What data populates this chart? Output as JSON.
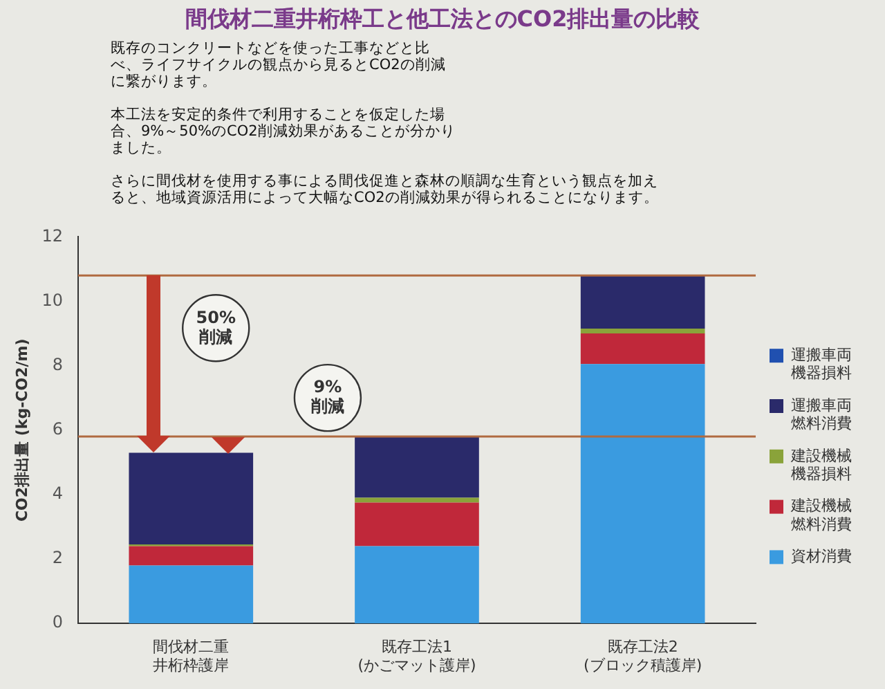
{
  "chart_data": {
    "type": "bar",
    "stacked": true,
    "title": "間伐材二重井桁枠工と他工法とのCO2排出量の比較",
    "subtitle": "既存のコンクリートなどを使った工事などと比べ、ライフサイクルの観点から見るとCO2の削減に繋がります。",
    "ylabel": "CO2排出量 (kg-CO2/m)",
    "categories": [
      "間伐材二重井桁枠護岸",
      "既存工法1(かごマット護岸)",
      "既存工法2(ブロック積護岸)"
    ],
    "series": [
      {
        "name": "資材消費",
        "color": "#3a9be0",
        "values": [
          1.8,
          2.4,
          8.05
        ]
      },
      {
        "name": "建設機械燃料消費",
        "color": "#c0283a",
        "values": [
          0.6,
          1.35,
          0.95
        ]
      },
      {
        "name": "建設機械機器損料",
        "color": "#8aa33a",
        "values": [
          0.05,
          0.15,
          0.15
        ]
      },
      {
        "name": "運搬車両燃料消費",
        "color": "#2a2a6a",
        "values": [
          2.85,
          1.9,
          1.65
        ]
      },
      {
        "name": "運搬車両機器損料",
        "color": "#2050b0",
        "values": [
          0,
          0,
          0
        ]
      }
    ],
    "ylim": [
      0,
      12
    ],
    "yticks": [
      0,
      2,
      4,
      6,
      8,
      10,
      12
    ],
    "grid": false,
    "legend": "right",
    "ref_lines": [
      {
        "axis": "y",
        "value": 10.8,
        "color": "#b06a40"
      },
      {
        "axis": "y",
        "value": 5.8,
        "color": "#b06a40"
      }
    ],
    "annotations": [
      "50%削減",
      "9%削減",
      "本工法を安定的条件で利用することを仮定した場合、9%～50%のCO2削減効果があることが分かりました。",
      "さらに間伐材を使用する事による間伐促進と森林の順調な生育という観点を加えると、地域資源活用によって大幅なCO2の削減効果が得られることになります。"
    ]
  }
}
